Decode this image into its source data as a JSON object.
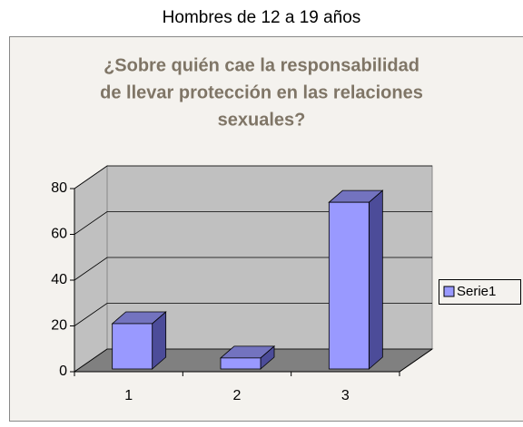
{
  "heading": "Hombres de 12 a 19 años",
  "chart_data": {
    "type": "bar3d",
    "title": [
      "¿Sobre quién cae la responsabilidad",
      "de llevar protección en las relaciones",
      "sexuales?"
    ],
    "categories": [
      "1",
      "2",
      "3"
    ],
    "series": [
      {
        "name": "Serie1",
        "color": "#9999ff",
        "values": [
          21,
          6,
          74
        ]
      }
    ],
    "ylim": [
      0,
      80
    ],
    "yticks": [
      0,
      20,
      40,
      60,
      80
    ],
    "grid": true,
    "legend": "right"
  }
}
